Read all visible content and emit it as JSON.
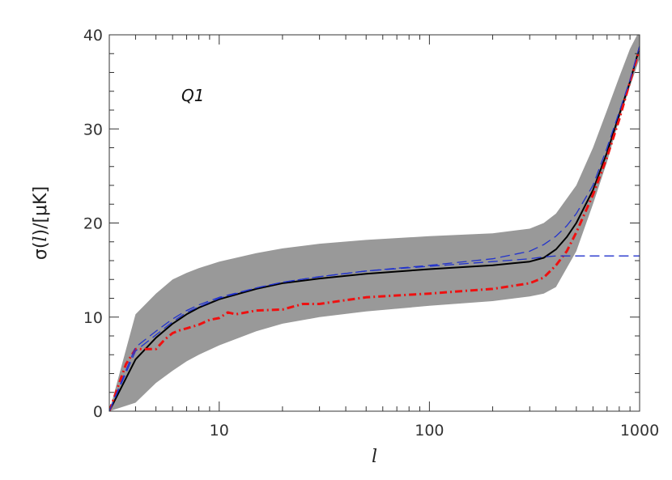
{
  "chart_data": {
    "type": "line",
    "title": "",
    "annotation": "Q1",
    "xlabel": "l",
    "ylabel": {
      "prefix": "σ(",
      "var": "l",
      "mid": ")/[",
      "unit": "μK",
      "suffix": "]"
    },
    "xscale": "log",
    "xlim": [
      3,
      1000
    ],
    "ylim": [
      0,
      40
    ],
    "x_ticks": [
      10,
      100,
      1000
    ],
    "x_tick_labels": [
      "10",
      "100",
      "1000"
    ],
    "y_ticks": [
      0,
      10,
      20,
      30,
      40
    ],
    "y_tick_labels": [
      "0",
      "10",
      "20",
      "30",
      "40"
    ],
    "grid": false,
    "legend": "none",
    "band": {
      "color": "#999999",
      "x": [
        3,
        4,
        5,
        6,
        7,
        8,
        10,
        15,
        20,
        30,
        50,
        100,
        200,
        300,
        350,
        400,
        500,
        600,
        700,
        800,
        900,
        1000
      ],
      "lower": [
        0,
        0.9,
        3,
        4.3,
        5.3,
        6,
        7,
        8.5,
        9.3,
        10,
        10.6,
        11.2,
        11.7,
        12.2,
        12.5,
        13.2,
        17,
        22,
        26.5,
        31,
        34.5,
        37.5
      ],
      "upper": [
        0,
        10.3,
        12.5,
        14,
        14.7,
        15.2,
        15.9,
        16.8,
        17.3,
        17.8,
        18.2,
        18.6,
        18.9,
        19.4,
        20,
        21,
        24,
        28,
        32,
        35.5,
        38.5,
        40.5
      ]
    },
    "series": [
      {
        "style": "solid",
        "color": "#000000",
        "x": [
          3,
          4,
          5,
          6,
          7,
          8,
          10,
          15,
          20,
          30,
          50,
          100,
          200,
          300,
          350,
          400,
          450,
          500,
          600,
          700,
          800,
          900,
          1000
        ],
        "y": [
          0,
          5.5,
          7.8,
          9.3,
          10.3,
          11,
          11.9,
          13,
          13.6,
          14.1,
          14.6,
          15.1,
          15.5,
          15.9,
          16.3,
          17.2,
          18.5,
          20,
          23.5,
          27.5,
          31.5,
          35,
          38.7
        ]
      },
      {
        "style": "dash-dot",
        "color": "#ee1111",
        "x": [
          3,
          3.6,
          4,
          4.5,
          5,
          5.5,
          6,
          6.5,
          7,
          8,
          9,
          10,
          11,
          12,
          15,
          20,
          25,
          30,
          40,
          50,
          70,
          100,
          150,
          200,
          300,
          350,
          400,
          450,
          500,
          600,
          700,
          800,
          900,
          1000
        ],
        "y": [
          0,
          5,
          6.6,
          6.6,
          6.6,
          7.6,
          8.3,
          8.6,
          8.8,
          9.2,
          9.7,
          9.9,
          10.5,
          10.3,
          10.7,
          10.8,
          11.4,
          11.4,
          11.8,
          12.1,
          12.3,
          12.5,
          12.8,
          13,
          13.6,
          14.2,
          15.5,
          17,
          19,
          23,
          27,
          31,
          35,
          38.5
        ]
      },
      {
        "style": "long-dash",
        "color": "#2233cc",
        "x": [
          3,
          4,
          5,
          6,
          7,
          8,
          10,
          15,
          20,
          30,
          50,
          100,
          200,
          300,
          350,
          400,
          450,
          500,
          600,
          700,
          800,
          900,
          1000
        ],
        "y": [
          0,
          6.8,
          8.5,
          9.8,
          10.7,
          11.3,
          12.1,
          13.1,
          13.7,
          14.3,
          14.9,
          15.5,
          16.2,
          17,
          17.7,
          18.6,
          19.7,
          21,
          24,
          28,
          31.8,
          35.2,
          38.8
        ]
      },
      {
        "style": "long-dash",
        "color": "#2233cc",
        "x": [
          3,
          4,
          5,
          6,
          7,
          8,
          10,
          15,
          20,
          30,
          50,
          100,
          200,
          300,
          350,
          400,
          1000
        ],
        "y": [
          0,
          6.4,
          8.1,
          9.5,
          10.5,
          11.1,
          12,
          13.1,
          13.7,
          14.3,
          14.9,
          15.4,
          15.9,
          16.2,
          16.4,
          16.5,
          16.5
        ]
      }
    ]
  }
}
